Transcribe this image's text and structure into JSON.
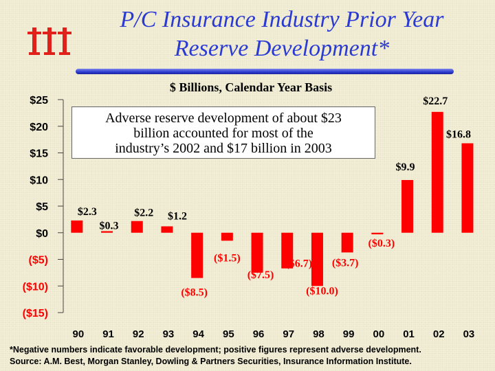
{
  "title_line1": "P/C Insurance Industry Prior Year",
  "title_line2": "Reserve Development*",
  "subtitle": "$ Billions, Calendar Year Basis",
  "annotation": {
    "line1": "Adverse reserve development of about $23",
    "line2": "billion accounted for most of the",
    "line3": "industry’s 2002 and $17 billion in 2003"
  },
  "footnote": {
    "line1": "*Negative numbers indicate favorable development; positive figures represent adverse development.",
    "line2": "Source: A.M. Best, Morgan Stanley, Dowling & Partners Securities, Insurance Information Institute."
  },
  "colors": {
    "title": "#2b3bd1",
    "bar": "#ff0000",
    "tick_label": "#ff0000",
    "data_label": "#ff0000",
    "logo": "#e0201b"
  },
  "chart_data": {
    "type": "bar",
    "title": "$ Billions, Calendar Year Basis",
    "xlabel": "",
    "ylabel": "",
    "ylim": [
      -15,
      25
    ],
    "yticks": [
      25,
      20,
      15,
      10,
      5,
      0,
      -5,
      -10,
      -15
    ],
    "ytick_labels": [
      "$25",
      "$20",
      "$15",
      "$10",
      "$5",
      "$0",
      "($5)",
      "($10)",
      "($15)"
    ],
    "categories": [
      "90",
      "91",
      "92",
      "93",
      "94",
      "95",
      "96",
      "97",
      "98",
      "99",
      "00",
      "01",
      "02",
      "03"
    ],
    "values": [
      2.3,
      0.3,
      2.2,
      1.2,
      -8.5,
      -1.5,
      -7.5,
      -6.7,
      -10.0,
      -3.7,
      -0.3,
      9.9,
      22.7,
      16.8
    ],
    "data_labels": [
      "$2.3",
      "$0.3",
      "$2.2",
      "$1.2",
      "($8.5)",
      "($1.5)",
      "($7.5)",
      "($6.7)",
      "($10.0)",
      "($3.7)",
      "($0.3)",
      "$9.9",
      "$22.7",
      "$16.8"
    ],
    "grid": false
  }
}
